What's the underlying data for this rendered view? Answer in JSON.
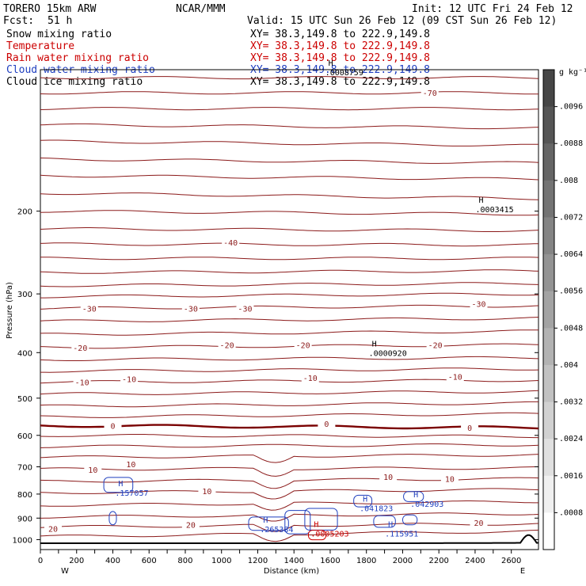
{
  "header": {
    "model": "TORERO  15km ARW",
    "center": "NCAR/MMM",
    "init": "Init: 12 UTC Fri 24 Feb 12",
    "fcst_label": "Fcst:",
    "fcst_value": "51 h",
    "valid": "Valid: 15 UTC Sun 26 Feb 12 (09 CST Sun 26 Feb 12)"
  },
  "fields": [
    {
      "name": "Snow mixing ratio",
      "xy": "XY=  38.3,149.8 to 222.9,149.8",
      "color": "#000000",
      "xy_color": "#000000"
    },
    {
      "name": "Temperature",
      "xy": "XY=  38.3,149.8 to 222.9,149.8",
      "color": "#cc0000",
      "xy_color": "#cc0000"
    },
    {
      "name": "Rain water mixing ratio",
      "xy": "XY=  38.3,149.8 to 222.9,149.8",
      "color": "#cc0000",
      "xy_color": "#cc0000"
    },
    {
      "name": "Cloud water mixing ratio",
      "xy": "XY=  38.3,149.8 to 222.9,149.8",
      "color": "#1f3fbf",
      "xy_color": "#1f3fbf"
    },
    {
      "name": "Cloud ice mixing ratio",
      "xy": "XY=  38.3,149.8 to 222.9,149.8",
      "color": "#000000",
      "xy_color": "#000000"
    }
  ],
  "colors": {
    "temperature": "#8b1a1a",
    "freezing": "#7a0000",
    "cloud_water": "#1f3fbf",
    "rain_water": "#cc0000",
    "terrain": "#000000"
  },
  "chart_data": {
    "type": "contour",
    "xlabel": "Distance (km)",
    "ylabel": "Pressure (hPa)",
    "xlim": [
      0,
      2750
    ],
    "ylim": [
      1050,
      100
    ],
    "y_scale": "log",
    "xticks": [
      0,
      100,
      200,
      300,
      400,
      500,
      600,
      700,
      800,
      900,
      1000,
      1100,
      1200,
      1300,
      1400,
      1500,
      1600,
      1700,
      1800,
      1900,
      2000,
      2100,
      2200,
      2300,
      2400,
      2500,
      2600
    ],
    "xtick_labels": [
      0,
      200,
      400,
      600,
      800,
      1000,
      1200,
      1400,
      1600,
      1800,
      2000,
      2200,
      2400,
      2600
    ],
    "yticks": [
      200,
      300,
      400,
      500,
      600,
      700,
      800,
      900,
      1000
    ],
    "end_labels": {
      "left": "W",
      "right": "E"
    },
    "temperature_labels": [
      {
        "x": 2150,
        "p": 112,
        "text": "-70"
      },
      {
        "x": 1050,
        "p": 233,
        "text": "-40"
      },
      {
        "x": 270,
        "p": 322,
        "text": "-30"
      },
      {
        "x": 830,
        "p": 322,
        "text": "-30"
      },
      {
        "x": 1130,
        "p": 322,
        "text": "-30"
      },
      {
        "x": 2420,
        "p": 315,
        "text": "-30"
      },
      {
        "x": 220,
        "p": 390,
        "text": "-20"
      },
      {
        "x": 1030,
        "p": 385,
        "text": "-20"
      },
      {
        "x": 1450,
        "p": 385,
        "text": "-20"
      },
      {
        "x": 2180,
        "p": 385,
        "text": "-20"
      },
      {
        "x": 230,
        "p": 462,
        "text": "-10"
      },
      {
        "x": 490,
        "p": 455,
        "text": "-10"
      },
      {
        "x": 1490,
        "p": 452,
        "text": "-10"
      },
      {
        "x": 2290,
        "p": 450,
        "text": "-10"
      },
      {
        "x": 400,
        "p": 572,
        "text": "0"
      },
      {
        "x": 1580,
        "p": 567,
        "text": "0"
      },
      {
        "x": 2370,
        "p": 578,
        "text": "0"
      },
      {
        "x": 290,
        "p": 709,
        "text": "10"
      },
      {
        "x": 500,
        "p": 690,
        "text": "10"
      },
      {
        "x": 920,
        "p": 788,
        "text": "10"
      },
      {
        "x": 1920,
        "p": 735,
        "text": "10"
      },
      {
        "x": 2260,
        "p": 742,
        "text": "10"
      },
      {
        "x": 70,
        "p": 947,
        "text": "20"
      },
      {
        "x": 830,
        "p": 929,
        "text": "20"
      },
      {
        "x": 2420,
        "p": 920,
        "text": "20"
      }
    ],
    "maxima": [
      {
        "x": 2420,
        "p": 192,
        "label": "H",
        "value": ".0003415",
        "color": "#000000"
      },
      {
        "x": 1830,
        "p": 388,
        "label": "H",
        "value": ".0000920",
        "color": "#000000"
      },
      {
        "x": 1590,
        "p": 98,
        "label": "H",
        "value": ".0008759",
        "color": "#000000"
      },
      {
        "x": 430,
        "p": 770,
        "label": "H",
        "value": ".157057",
        "color": "#1f3fbf"
      },
      {
        "x": 1780,
        "p": 830,
        "label": "H",
        "value": ".041823",
        "color": "#1f3fbf"
      },
      {
        "x": 2060,
        "p": 812,
        "label": "H",
        "value": ".042903",
        "color": "#1f3fbf"
      },
      {
        "x": 1230,
        "p": 920,
        "label": "H",
        "value": ".265384",
        "color": "#1f3fbf"
      },
      {
        "x": 1510,
        "p": 940,
        "label": "H",
        "value": ".0005203",
        "color": "#cc0000"
      },
      {
        "x": 1920,
        "p": 940,
        "label": "H",
        "value": ".115951",
        "color": "#1f3fbf"
      }
    ],
    "colorbar": {
      "unit": "g kg⁻¹",
      "labels": [
        ".0096",
        ".0088",
        ".008",
        ".0072",
        ".0064",
        ".0056",
        ".0048",
        ".004",
        ".0032",
        ".0024",
        ".0016",
        ".0008"
      ]
    }
  }
}
